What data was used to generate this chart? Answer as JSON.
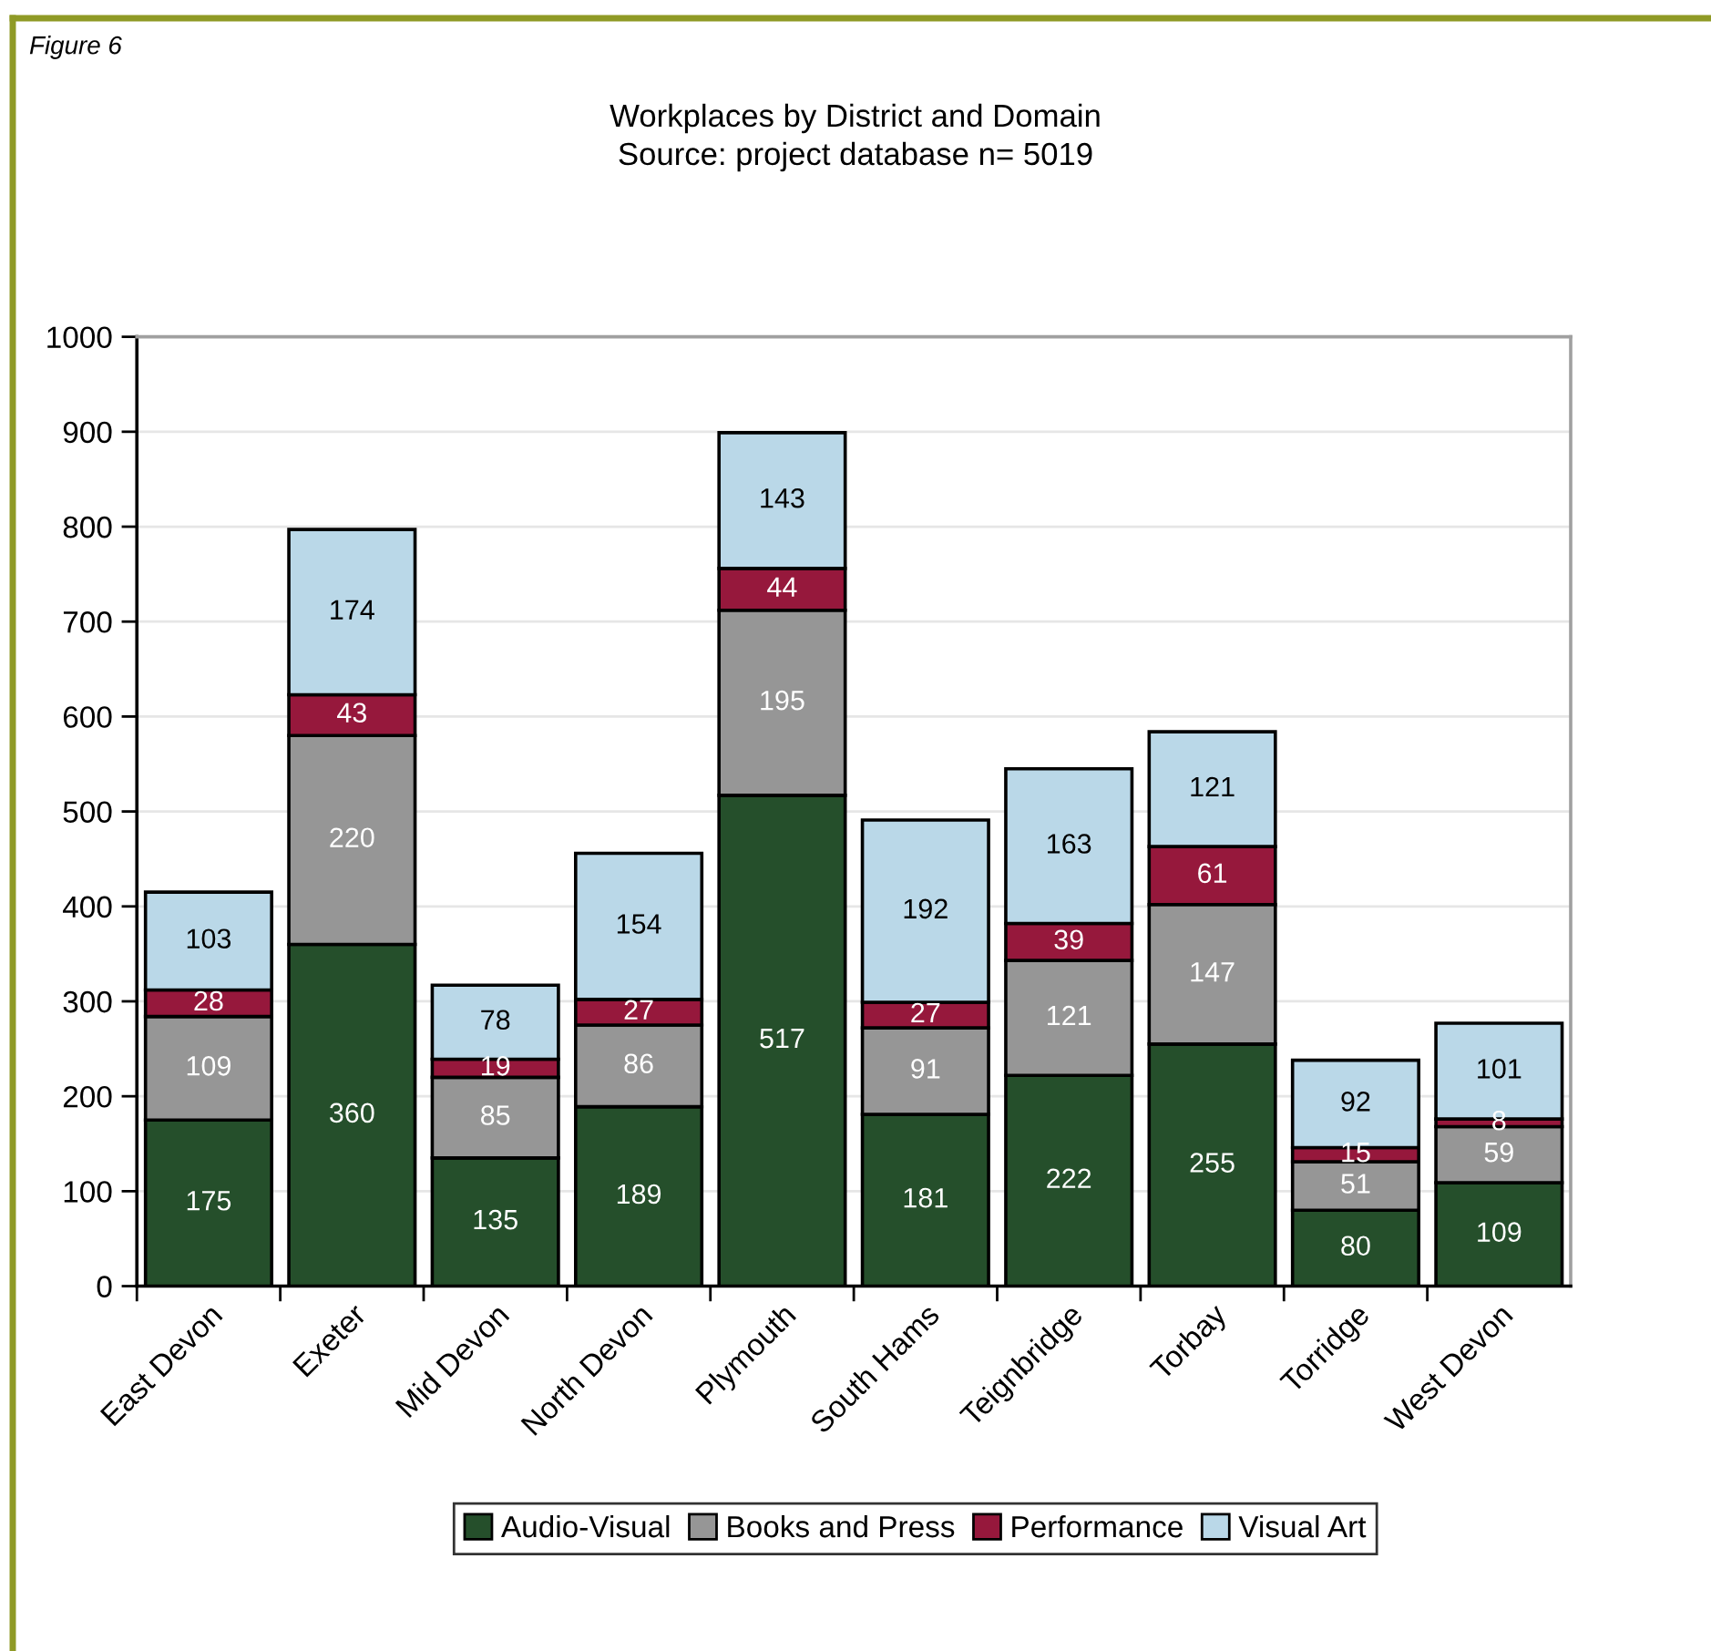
{
  "chart_data": {
    "type": "bar",
    "stacked": true,
    "title": "Workplaces by District and Domain",
    "subtitle": "Source: project database n= 5019",
    "annotations": [
      "Figure 6"
    ],
    "categories": [
      "East Devon",
      "Exeter",
      "Mid Devon",
      "North Devon",
      "Plymouth",
      "South Hams",
      "Teignbridge",
      "Torbay",
      "Torridge",
      "West Devon"
    ],
    "series": [
      {
        "name": "Audio-Visual",
        "color": "#254f2b",
        "values": [
          175,
          360,
          135,
          189,
          517,
          181,
          222,
          255,
          80,
          109
        ]
      },
      {
        "name": "Books and Press",
        "color": "#969696",
        "values": [
          109,
          220,
          85,
          86,
          195,
          91,
          121,
          147,
          51,
          59
        ]
      },
      {
        "name": "Performance",
        "color": "#96183c",
        "values": [
          28,
          43,
          19,
          27,
          44,
          27,
          39,
          61,
          15,
          8
        ]
      },
      {
        "name": "Visual Art",
        "color": "#bad8e8",
        "values": [
          103,
          174,
          78,
          154,
          143,
          192,
          163,
          121,
          92,
          101
        ]
      }
    ],
    "ylim": [
      0,
      1000
    ],
    "yticks": [
      0,
      100,
      200,
      300,
      400,
      500,
      600,
      700,
      800,
      900,
      1000
    ],
    "grid": "y",
    "legend": "bottom",
    "data_labels": true
  }
}
